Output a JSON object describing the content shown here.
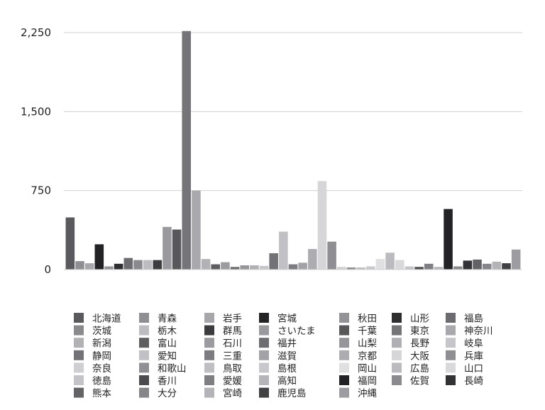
{
  "chart_data": {
    "type": "bar",
    "ylim": [
      0,
      2400
    ],
    "yticks": [
      0,
      750,
      1500,
      2250
    ],
    "ytick_labels": [
      "0",
      "750",
      "1,500",
      "2,250"
    ],
    "grid": true,
    "legend_position": "bottom",
    "categories": [
      "北海道",
      "青森",
      "岩手",
      "宮城",
      "秋田",
      "山形",
      "福島",
      "茨城",
      "栃木",
      "群馬",
      "さいたま",
      "千葉",
      "東京",
      "神奈川",
      "新潟",
      "富山",
      "石川",
      "福井",
      "山梨",
      "長野",
      "岐阜",
      "静岡",
      "愛知",
      "三重",
      "滋賀",
      "京都",
      "大阪",
      "兵庫",
      "奈良",
      "和歌山",
      "鳥取",
      "島根",
      "岡山",
      "広島",
      "山口",
      "徳島",
      "香川",
      "愛媛",
      "高知",
      "福岡",
      "佐賀",
      "長崎",
      "熊本",
      "大分",
      "宮崎",
      "鹿児島",
      "沖縄"
    ],
    "series": [
      {
        "values": [
          495,
          80,
          60,
          240,
          30,
          55,
          110,
          90,
          90,
          90,
          405,
          380,
          2265,
          750,
          100,
          50,
          70,
          25,
          40,
          40,
          35,
          155,
          360,
          50,
          65,
          195,
          840,
          265,
          25,
          20,
          20,
          30,
          100,
          160,
          90,
          30,
          25,
          55,
          25,
          575,
          30,
          85,
          95,
          55,
          75,
          60,
          190
        ]
      }
    ],
    "colors": [
      "#5a5a5e",
      "#8e8e93",
      "#a7a7ab",
      "#232325",
      "#939397",
      "#2e2e30",
      "#6c6c70",
      "#8a8a8e",
      "#bdbdc1",
      "#3c3c3e",
      "#9a9a9e",
      "#58585b",
      "#757579",
      "#a9a9ad",
      "#b2b2b6",
      "#5e5e61",
      "#9c9ca0",
      "#6d6d71",
      "#95959a",
      "#b0b0b4",
      "#c6c6ca",
      "#737377",
      "#c1c1c5",
      "#7d7d81",
      "#a3a3a7",
      "#adadb1",
      "#d6d6d9",
      "#8f8f93",
      "#cfcfd3",
      "#909094",
      "#bfbfc3",
      "#c8c8cc",
      "#e0e0e3",
      "#bbbbbf",
      "#d9d9dc",
      "#c4c4c8",
      "#4c4c4f",
      "#7f7f83",
      "#b5b5b9",
      "#232325",
      "#8b8b8f",
      "#323234",
      "#636367",
      "#85858a",
      "#b4b4b8",
      "#414144",
      "#9d9da1"
    ]
  }
}
